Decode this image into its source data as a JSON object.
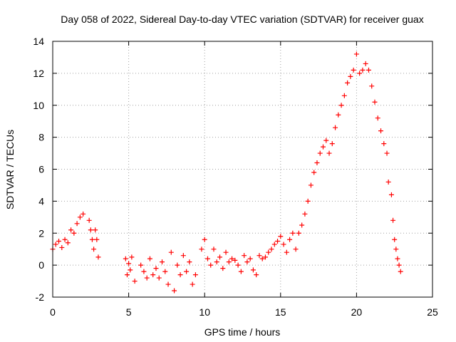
{
  "chart_data": {
    "type": "scatter",
    "title": "Day 058 of 2022, Sidereal Day-to-day VTEC variation (SDTVAR) for receiver guax",
    "xlabel": "GPS time / hours",
    "ylabel": "SDTVAR / TECUs",
    "xlim": [
      0,
      25
    ],
    "ylim": [
      -2,
      14
    ],
    "xticks": [
      0,
      5,
      10,
      15,
      20,
      25
    ],
    "yticks": [
      -2,
      0,
      2,
      4,
      6,
      8,
      10,
      12,
      14
    ],
    "grid": true,
    "marker": "plus",
    "color": "#ff0000",
    "series": [
      {
        "name": "SDTVAR",
        "x": [
          0.0,
          0.2,
          0.4,
          0.6,
          0.8,
          1.0,
          1.2,
          1.4,
          1.6,
          1.8,
          2.0,
          2.4,
          2.5,
          2.6,
          2.7,
          2.8,
          2.9,
          3.0,
          4.8,
          4.9,
          5.0,
          5.1,
          5.2,
          5.4,
          5.8,
          6.0,
          6.2,
          6.4,
          6.6,
          6.8,
          7.0,
          7.2,
          7.4,
          7.6,
          7.8,
          8.0,
          8.2,
          8.4,
          8.6,
          8.8,
          9.0,
          9.2,
          9.4,
          9.8,
          10.0,
          10.2,
          10.4,
          10.6,
          10.8,
          11.0,
          11.2,
          11.4,
          11.6,
          11.8,
          12.0,
          12.2,
          12.4,
          12.6,
          12.8,
          13.0,
          13.2,
          13.4,
          13.6,
          13.8,
          14.0,
          14.2,
          14.4,
          14.6,
          14.8,
          15.0,
          15.2,
          15.4,
          15.6,
          15.8,
          16.0,
          16.2,
          16.4,
          16.6,
          16.8,
          17.0,
          17.2,
          17.4,
          17.6,
          17.8,
          18.0,
          18.2,
          18.4,
          18.6,
          18.8,
          19.0,
          19.2,
          19.4,
          19.6,
          19.8,
          20.0,
          20.2,
          20.4,
          20.6,
          20.8,
          21.0,
          21.2,
          21.4,
          21.6,
          21.8,
          22.0,
          22.1,
          22.3,
          22.4,
          22.5,
          22.6,
          22.7,
          22.8,
          22.9
        ],
        "y": [
          1.0,
          1.3,
          1.5,
          1.1,
          1.6,
          1.4,
          2.2,
          2.0,
          2.6,
          3.0,
          3.2,
          2.8,
          2.2,
          1.6,
          1.0,
          2.2,
          1.6,
          0.5,
          0.4,
          -0.6,
          0.1,
          -0.3,
          0.5,
          -1.0,
          0.0,
          -0.4,
          -0.8,
          0.4,
          -0.6,
          -0.2,
          -0.8,
          0.2,
          -0.4,
          -1.2,
          0.8,
          -1.6,
          0.0,
          -0.6,
          0.6,
          -0.4,
          0.2,
          -1.2,
          -0.6,
          1.0,
          1.6,
          0.4,
          0.0,
          1.0,
          0.2,
          0.5,
          -0.2,
          0.8,
          0.2,
          0.4,
          0.3,
          0.0,
          -0.4,
          0.6,
          0.2,
          0.4,
          -0.3,
          -0.6,
          0.6,
          0.4,
          0.5,
          0.8,
          1.0,
          1.3,
          1.5,
          1.8,
          1.3,
          0.8,
          1.6,
          2.0,
          1.0,
          2.0,
          2.5,
          3.2,
          4.0,
          5.0,
          5.8,
          6.4,
          7.0,
          7.4,
          7.8,
          7.0,
          7.6,
          8.6,
          9.4,
          10.0,
          10.6,
          11.4,
          11.8,
          12.2,
          13.2,
          12.0,
          12.2,
          12.6,
          12.2,
          11.2,
          10.2,
          9.2,
          8.4,
          7.6,
          7.0,
          5.2,
          4.4,
          2.8,
          1.6,
          1.0,
          0.4,
          0.0,
          -0.4
        ]
      }
    ]
  }
}
